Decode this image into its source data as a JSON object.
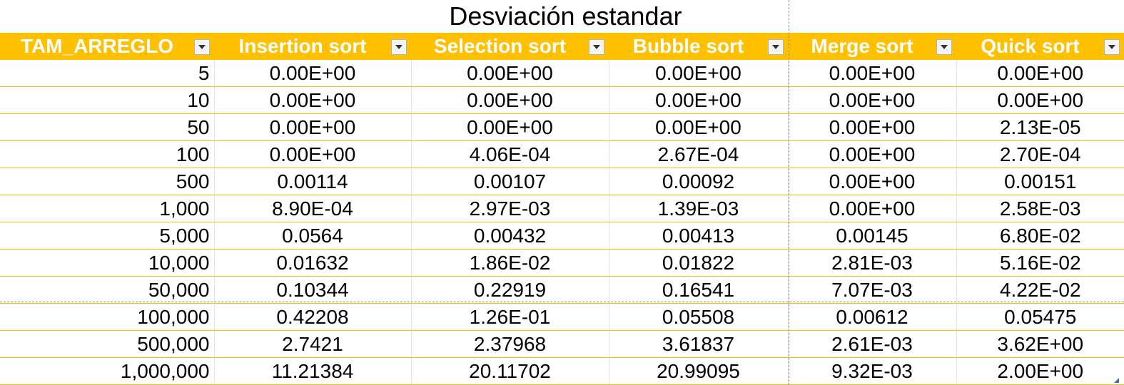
{
  "title": "Desviación estandar",
  "headers": [
    "TAM_ARREGLO",
    "Insertion sort",
    "Selection sort",
    "Bubble sort",
    "Merge sort",
    "Quick sort"
  ],
  "filter_icon": "chevron-down-icon",
  "header_color": "#ffc000",
  "rows": [
    [
      "5",
      "0.00E+00",
      "0.00E+00",
      "0.00E+00",
      "0.00E+00",
      "0.00E+00"
    ],
    [
      "10",
      "0.00E+00",
      "0.00E+00",
      "0.00E+00",
      "0.00E+00",
      "0.00E+00"
    ],
    [
      "50",
      "0.00E+00",
      "0.00E+00",
      "0.00E+00",
      "0.00E+00",
      "2.13E-05"
    ],
    [
      "100",
      "0.00E+00",
      "4.06E-04",
      "2.67E-04",
      "0.00E+00",
      "2.70E-04"
    ],
    [
      "500",
      "0.00114",
      "0.00107",
      "0.00092",
      "0.00E+00",
      "0.00151"
    ],
    [
      "1,000",
      "8.90E-04",
      "2.97E-03",
      "1.39E-03",
      "0.00E+00",
      "2.58E-03"
    ],
    [
      "5,000",
      "0.0564",
      "0.00432",
      "0.00413",
      "0.00145",
      "6.80E-02"
    ],
    [
      "10,000",
      "0.01632",
      "1.86E-02",
      "0.01822",
      "2.81E-03",
      "5.16E-02"
    ],
    [
      "50,000",
      "0.10344",
      "0.22919",
      "0.16541",
      "7.07E-03",
      "4.22E-02"
    ],
    [
      "100,000",
      "0.42208",
      "1.26E-01",
      "0.05508",
      "0.00612",
      "0.05475"
    ],
    [
      "500,000",
      "2.7421",
      "2.37968",
      "3.61837",
      "2.61E-03",
      "3.62E+00"
    ],
    [
      "1,000,000",
      "11.21384",
      "20.11702",
      "20.99095",
      "9.32E-03",
      "2.00E+00"
    ]
  ]
}
